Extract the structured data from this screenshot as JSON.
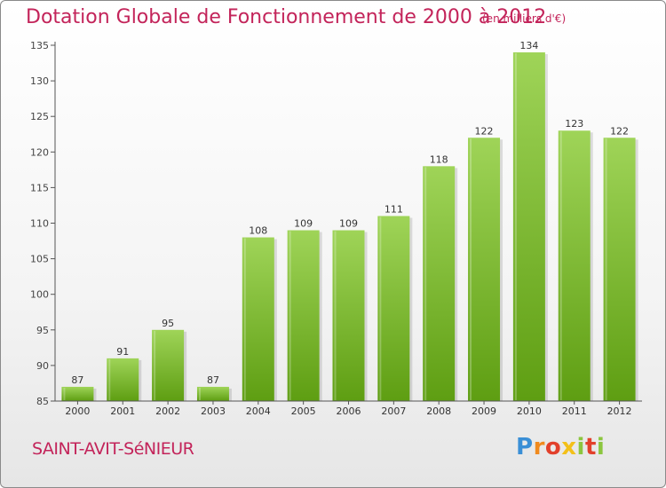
{
  "header": {
    "title": "Dotation Globale de Fonctionnement de 2000 à 2012",
    "unit": "(en milliers d'€)"
  },
  "footer": {
    "commune": "SAINT-AVIT-SéNIEUR",
    "logo": [
      "P",
      "r",
      "o",
      "x",
      "i",
      "t",
      "i"
    ]
  },
  "colors": {
    "accent": "#c3245a",
    "bar_top": "#9fd458",
    "bar_bottom": "#5e9e12",
    "axis": "#555555"
  },
  "chart_data": {
    "type": "bar",
    "title": "Dotation Globale de Fonctionnement de 2000 à 2012",
    "subtitle": "(en milliers d'€)",
    "xlabel": "",
    "ylabel": "",
    "categories": [
      "2000",
      "2001",
      "2002",
      "2003",
      "2004",
      "2005",
      "2006",
      "2007",
      "2008",
      "2009",
      "2010",
      "2011",
      "2012"
    ],
    "values": [
      87,
      91,
      95,
      87,
      108,
      109,
      109,
      111,
      118,
      122,
      134,
      123,
      122
    ],
    "ylim": [
      85,
      135
    ],
    "yticks": [
      85,
      90,
      95,
      100,
      105,
      110,
      115,
      120,
      125,
      130,
      135
    ],
    "grid": false,
    "legend": "none"
  }
}
